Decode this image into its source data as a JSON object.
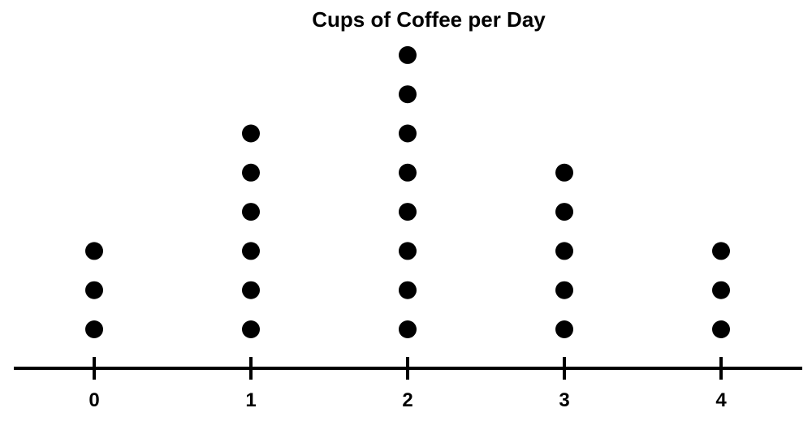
{
  "chart_data": {
    "type": "scatter",
    "subtype": "dot-plot",
    "title": "Cups of Coffee per Day",
    "xlabel": "",
    "ylabel": "",
    "categories": [
      "0",
      "1",
      "2",
      "3",
      "4"
    ],
    "x": [
      0,
      1,
      2,
      3,
      4
    ],
    "counts": [
      3,
      6,
      8,
      5,
      3
    ],
    "xlim": [
      -0.5,
      4.5
    ],
    "grid": false,
    "legend": "none",
    "colors": {
      "dot": "#000000",
      "axis": "#000000",
      "background": "#ffffff"
    }
  }
}
